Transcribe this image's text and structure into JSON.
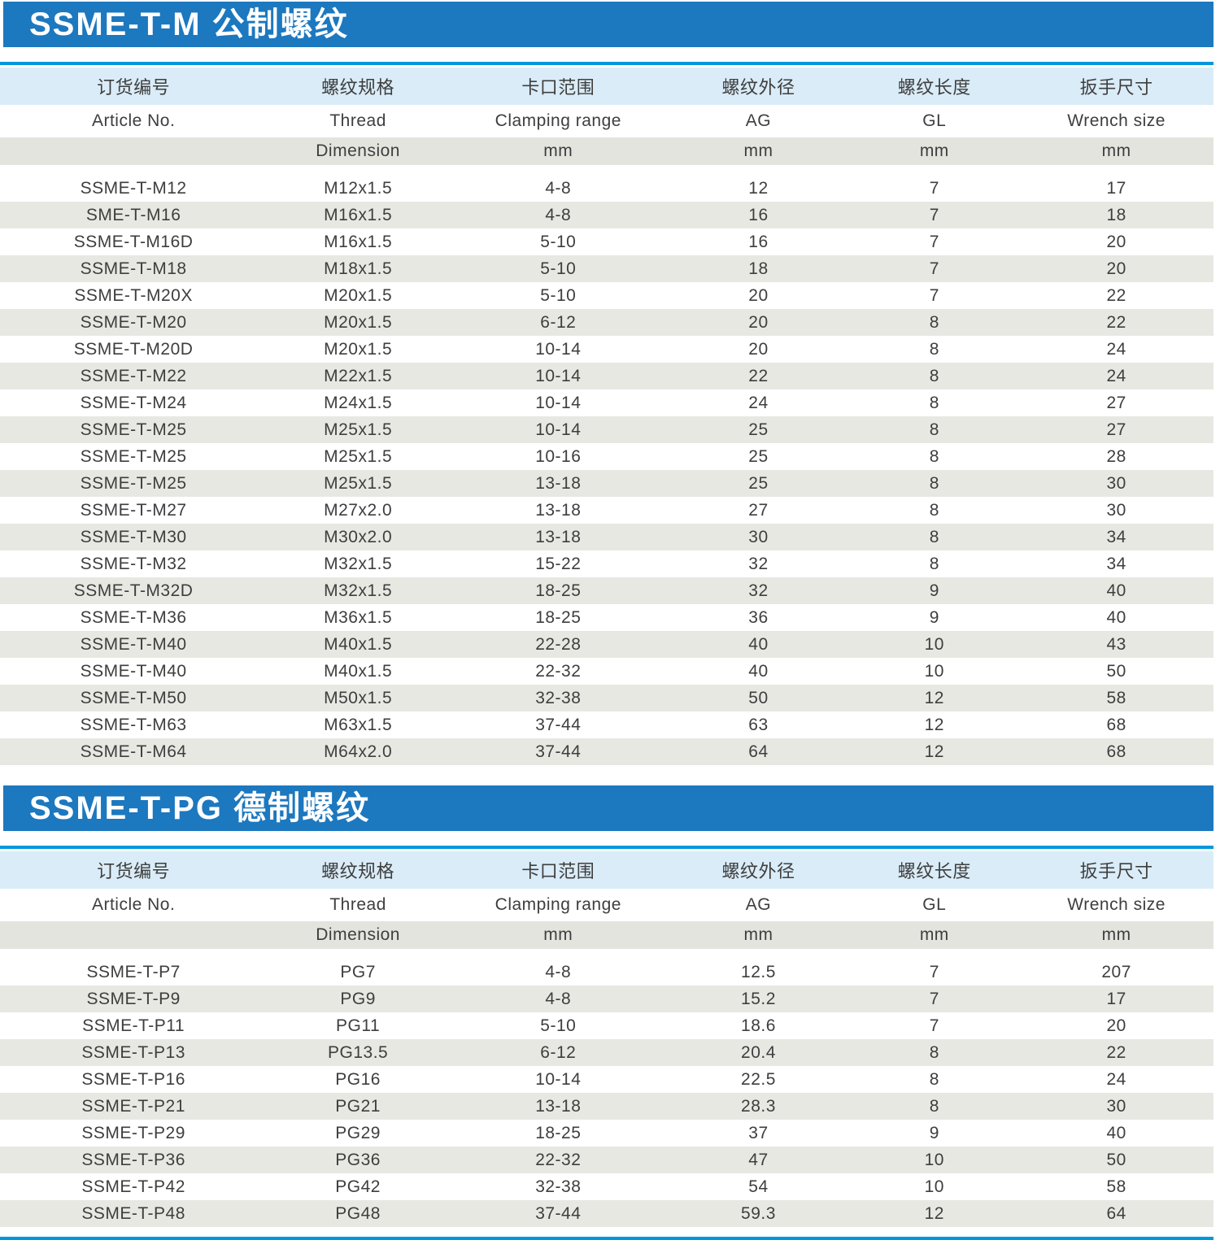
{
  "page": {
    "banner_color": "#1c78bf",
    "rule_color": "#0098dc",
    "header_row_color": "#daecf8",
    "unit_row_color": "#e4e4df",
    "stripe_row_color": "#e8e8e3",
    "text_color": "#3e3e3e"
  },
  "sections": [
    {
      "title": "SSME-T-M 公制螺纹",
      "columns": [
        {
          "zh": "订货编号",
          "en": "Article No.",
          "unit": ""
        },
        {
          "zh": "螺纹规格",
          "en": "Thread",
          "unit": "Dimension"
        },
        {
          "zh": "卡口范围",
          "en": "Clamping range",
          "unit": "mm"
        },
        {
          "zh": "螺纹外径",
          "en": "AG",
          "unit": "mm"
        },
        {
          "zh": "螺纹长度",
          "en": "GL",
          "unit": "mm"
        },
        {
          "zh": "扳手尺寸",
          "en": "Wrench size",
          "unit": "mm"
        }
      ],
      "rows": [
        [
          "SSME-T-M12",
          "M12x1.5",
          "4-8",
          "12",
          "7",
          "17"
        ],
        [
          "SME-T-M16",
          "M16x1.5",
          "4-8",
          "16",
          "7",
          "18"
        ],
        [
          "SSME-T-M16D",
          "M16x1.5",
          "5-10",
          "16",
          "7",
          "20"
        ],
        [
          "SSME-T-M18",
          "M18x1.5",
          "5-10",
          "18",
          "7",
          "20"
        ],
        [
          "SSME-T-M20X",
          "M20x1.5",
          "5-10",
          "20",
          "7",
          "22"
        ],
        [
          "SSME-T-M20",
          "M20x1.5",
          "6-12",
          "20",
          "8",
          "22"
        ],
        [
          "SSME-T-M20D",
          "M20x1.5",
          "10-14",
          "20",
          "8",
          "24"
        ],
        [
          "SSME-T-M22",
          "M22x1.5",
          "10-14",
          "22",
          "8",
          "24"
        ],
        [
          "SSME-T-M24",
          "M24x1.5",
          "10-14",
          "24",
          "8",
          "27"
        ],
        [
          "SSME-T-M25",
          "M25x1.5",
          "10-14",
          "25",
          "8",
          "27"
        ],
        [
          "SSME-T-M25",
          "M25x1.5",
          "10-16",
          "25",
          "8",
          "28"
        ],
        [
          "SSME-T-M25",
          "M25x1.5",
          "13-18",
          "25",
          "8",
          "30"
        ],
        [
          "SSME-T-M27",
          "M27x2.0",
          "13-18",
          "27",
          "8",
          "30"
        ],
        [
          "SSME-T-M30",
          "M30x2.0",
          "13-18",
          "30",
          "8",
          "34"
        ],
        [
          "SSME-T-M32",
          "M32x1.5",
          "15-22",
          "32",
          "8",
          "34"
        ],
        [
          "SSME-T-M32D",
          "M32x1.5",
          "18-25",
          "32",
          "9",
          "40"
        ],
        [
          "SSME-T-M36",
          "M36x1.5",
          "18-25",
          "36",
          "9",
          "40"
        ],
        [
          "SSME-T-M40",
          "M40x1.5",
          "22-28",
          "40",
          "10",
          "43"
        ],
        [
          "SSME-T-M40",
          "M40x1.5",
          "22-32",
          "40",
          "10",
          "50"
        ],
        [
          "SSME-T-M50",
          "M50x1.5",
          "32-38",
          "50",
          "12",
          "58"
        ],
        [
          "SSME-T-M63",
          "M63x1.5",
          "37-44",
          "63",
          "12",
          "68"
        ],
        [
          "SSME-T-M64",
          "M64x2.0",
          "37-44",
          "64",
          "12",
          "68"
        ]
      ]
    },
    {
      "title": "SSME-T-PG 德制螺纹",
      "columns": [
        {
          "zh": "订货编号",
          "en": "Article No.",
          "unit": ""
        },
        {
          "zh": "螺纹规格",
          "en": "Thread",
          "unit": "Dimension"
        },
        {
          "zh": "卡口范围",
          "en": "Clamping range",
          "unit": "mm"
        },
        {
          "zh": "螺纹外径",
          "en": "AG",
          "unit": "mm"
        },
        {
          "zh": "螺纹长度",
          "en": "GL",
          "unit": "mm"
        },
        {
          "zh": "扳手尺寸",
          "en": "Wrench size",
          "unit": "mm"
        }
      ],
      "rows": [
        [
          "SSME-T-P7",
          "PG7",
          "4-8",
          "12.5",
          "7",
          "207"
        ],
        [
          "SSME-T-P9",
          "PG9",
          "4-8",
          "15.2",
          "7",
          "17"
        ],
        [
          "SSME-T-P11",
          "PG11",
          "5-10",
          "18.6",
          "7",
          "20"
        ],
        [
          "SSME-T-P13",
          "PG13.5",
          "6-12",
          "20.4",
          "8",
          "22"
        ],
        [
          "SSME-T-P16",
          "PG16",
          "10-14",
          "22.5",
          "8",
          "24"
        ],
        [
          "SSME-T-P21",
          "PG21",
          "13-18",
          "28.3",
          "8",
          "30"
        ],
        [
          "SSME-T-P29",
          "PG29",
          "18-25",
          "37",
          "9",
          "40"
        ],
        [
          "SSME-T-P36",
          "PG36",
          "22-32",
          "47",
          "10",
          "50"
        ],
        [
          "SSME-T-P42",
          "PG42",
          "32-38",
          "54",
          "10",
          "58"
        ],
        [
          "SSME-T-P48",
          "PG48",
          "37-44",
          "59.3",
          "12",
          "64"
        ]
      ]
    }
  ]
}
